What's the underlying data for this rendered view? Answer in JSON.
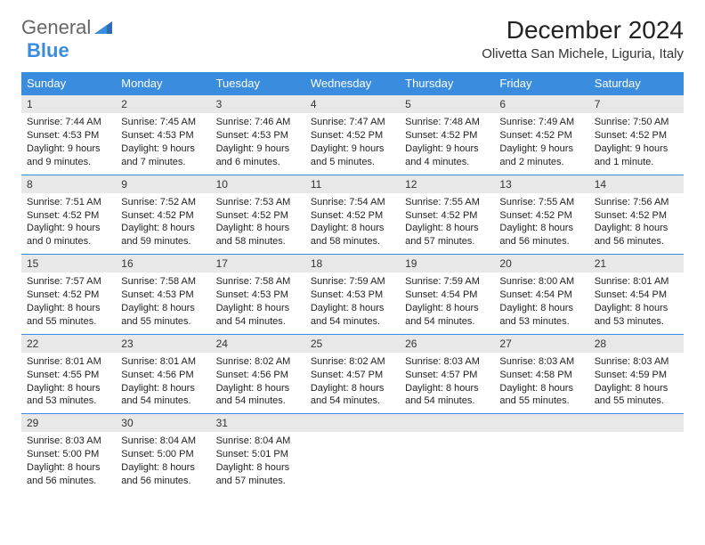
{
  "logo": {
    "text1": "General",
    "text2": "Blue"
  },
  "title": "December 2024",
  "location": "Olivetta San Michele, Liguria, Italy",
  "colors": {
    "header_bg": "#3a8dde",
    "header_text": "#ffffff",
    "daynum_bg": "#e8e8e8",
    "daynum_border": "#3a8dde",
    "body_text": "#222222",
    "page_bg": "#ffffff"
  },
  "weekdays": [
    "Sunday",
    "Monday",
    "Tuesday",
    "Wednesday",
    "Thursday",
    "Friday",
    "Saturday"
  ],
  "days": [
    {
      "n": "1",
      "sunrise": "7:44 AM",
      "sunset": "4:53 PM",
      "daylight": "9 hours and 9 minutes."
    },
    {
      "n": "2",
      "sunrise": "7:45 AM",
      "sunset": "4:53 PM",
      "daylight": "9 hours and 7 minutes."
    },
    {
      "n": "3",
      "sunrise": "7:46 AM",
      "sunset": "4:53 PM",
      "daylight": "9 hours and 6 minutes."
    },
    {
      "n": "4",
      "sunrise": "7:47 AM",
      "sunset": "4:52 PM",
      "daylight": "9 hours and 5 minutes."
    },
    {
      "n": "5",
      "sunrise": "7:48 AM",
      "sunset": "4:52 PM",
      "daylight": "9 hours and 4 minutes."
    },
    {
      "n": "6",
      "sunrise": "7:49 AM",
      "sunset": "4:52 PM",
      "daylight": "9 hours and 2 minutes."
    },
    {
      "n": "7",
      "sunrise": "7:50 AM",
      "sunset": "4:52 PM",
      "daylight": "9 hours and 1 minute."
    },
    {
      "n": "8",
      "sunrise": "7:51 AM",
      "sunset": "4:52 PM",
      "daylight": "9 hours and 0 minutes."
    },
    {
      "n": "9",
      "sunrise": "7:52 AM",
      "sunset": "4:52 PM",
      "daylight": "8 hours and 59 minutes."
    },
    {
      "n": "10",
      "sunrise": "7:53 AM",
      "sunset": "4:52 PM",
      "daylight": "8 hours and 58 minutes."
    },
    {
      "n": "11",
      "sunrise": "7:54 AM",
      "sunset": "4:52 PM",
      "daylight": "8 hours and 58 minutes."
    },
    {
      "n": "12",
      "sunrise": "7:55 AM",
      "sunset": "4:52 PM",
      "daylight": "8 hours and 57 minutes."
    },
    {
      "n": "13",
      "sunrise": "7:55 AM",
      "sunset": "4:52 PM",
      "daylight": "8 hours and 56 minutes."
    },
    {
      "n": "14",
      "sunrise": "7:56 AM",
      "sunset": "4:52 PM",
      "daylight": "8 hours and 56 minutes."
    },
    {
      "n": "15",
      "sunrise": "7:57 AM",
      "sunset": "4:52 PM",
      "daylight": "8 hours and 55 minutes."
    },
    {
      "n": "16",
      "sunrise": "7:58 AM",
      "sunset": "4:53 PM",
      "daylight": "8 hours and 55 minutes."
    },
    {
      "n": "17",
      "sunrise": "7:58 AM",
      "sunset": "4:53 PM",
      "daylight": "8 hours and 54 minutes."
    },
    {
      "n": "18",
      "sunrise": "7:59 AM",
      "sunset": "4:53 PM",
      "daylight": "8 hours and 54 minutes."
    },
    {
      "n": "19",
      "sunrise": "7:59 AM",
      "sunset": "4:54 PM",
      "daylight": "8 hours and 54 minutes."
    },
    {
      "n": "20",
      "sunrise": "8:00 AM",
      "sunset": "4:54 PM",
      "daylight": "8 hours and 53 minutes."
    },
    {
      "n": "21",
      "sunrise": "8:01 AM",
      "sunset": "4:54 PM",
      "daylight": "8 hours and 53 minutes."
    },
    {
      "n": "22",
      "sunrise": "8:01 AM",
      "sunset": "4:55 PM",
      "daylight": "8 hours and 53 minutes."
    },
    {
      "n": "23",
      "sunrise": "8:01 AM",
      "sunset": "4:56 PM",
      "daylight": "8 hours and 54 minutes."
    },
    {
      "n": "24",
      "sunrise": "8:02 AM",
      "sunset": "4:56 PM",
      "daylight": "8 hours and 54 minutes."
    },
    {
      "n": "25",
      "sunrise": "8:02 AM",
      "sunset": "4:57 PM",
      "daylight": "8 hours and 54 minutes."
    },
    {
      "n": "26",
      "sunrise": "8:03 AM",
      "sunset": "4:57 PM",
      "daylight": "8 hours and 54 minutes."
    },
    {
      "n": "27",
      "sunrise": "8:03 AM",
      "sunset": "4:58 PM",
      "daylight": "8 hours and 55 minutes."
    },
    {
      "n": "28",
      "sunrise": "8:03 AM",
      "sunset": "4:59 PM",
      "daylight": "8 hours and 55 minutes."
    },
    {
      "n": "29",
      "sunrise": "8:03 AM",
      "sunset": "5:00 PM",
      "daylight": "8 hours and 56 minutes."
    },
    {
      "n": "30",
      "sunrise": "8:04 AM",
      "sunset": "5:00 PM",
      "daylight": "8 hours and 56 minutes."
    },
    {
      "n": "31",
      "sunrise": "8:04 AM",
      "sunset": "5:01 PM",
      "daylight": "8 hours and 57 minutes."
    }
  ],
  "labels": {
    "sunrise": "Sunrise: ",
    "sunset": "Sunset: ",
    "daylight": "Daylight: "
  }
}
